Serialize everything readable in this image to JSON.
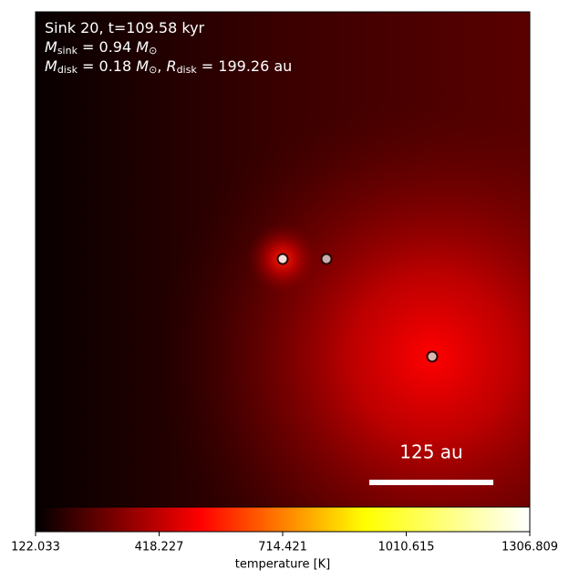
{
  "chart_data": {
    "type": "heatmap",
    "title_lines": [
      [
        "Sink 20, t=109.58 kyr"
      ],
      [
        "M",
        "sink",
        " = 0.94 ",
        "M",
        "⊙"
      ],
      [
        "M",
        "disk",
        " = 0.18 ",
        "M",
        "⊙",
        ", ",
        "R",
        "disk",
        " = 199.26 au"
      ]
    ],
    "scale_bar_label": "125 au",
    "colorbar": {
      "label": "temperature [K]",
      "lim": [
        122.033,
        1306.809
      ],
      "ticks": [
        122.033,
        418.227,
        714.421,
        1010.615,
        1306.809
      ],
      "colors": [
        "#000000",
        "#ff0000",
        "#ffff00",
        "#ffffff"
      ]
    }
  }
}
